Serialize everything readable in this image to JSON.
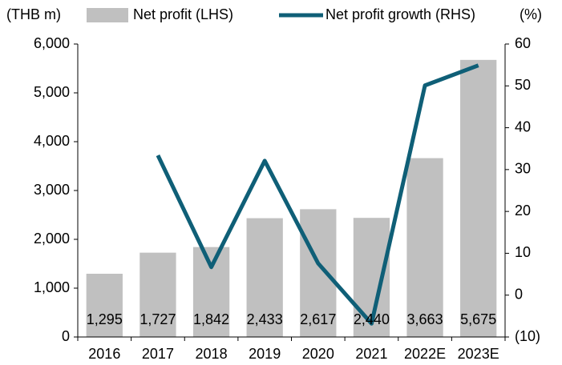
{
  "chart_data": {
    "type": "bar",
    "y_label": "(THB m)",
    "y2_label": "(%)",
    "categories": [
      "2016",
      "2017",
      "2018",
      "2019",
      "2020",
      "2021",
      "2022E",
      "2023E"
    ],
    "series": [
      {
        "name": "Net profit (LHS)",
        "type": "bar",
        "color": "#c0c0c0",
        "values": [
          1295,
          1727,
          1842,
          2433,
          2617,
          2440,
          3663,
          5675
        ],
        "value_labels": [
          "1,295",
          "1,727",
          "1,842",
          "2,433",
          "2,617",
          "2,440",
          "3,663",
          "5,675"
        ]
      },
      {
        "name": "Net profit growth (RHS)",
        "type": "line",
        "axis": "y2",
        "color": "#0f5f77",
        "values": [
          null,
          33.4,
          6.7,
          32.1,
          7.6,
          -6.8,
          50.1,
          54.9
        ]
      }
    ],
    "ylim": [
      0,
      6000
    ],
    "yticks": [
      0,
      {
        "value": 1000,
        "label": "1,000"
      },
      {
        "value": 2000,
        "label": "2,000"
      },
      {
        "value": 3000,
        "label": "3,000"
      },
      {
        "value": 4000,
        "label": "4,000"
      },
      {
        "value": 5000,
        "label": "5,000"
      },
      {
        "value": 6000,
        "label": "6,000"
      }
    ],
    "y2lim": [
      -10,
      60
    ],
    "y2ticks": [
      {
        "value": -10,
        "label": "(10)"
      },
      0,
      10,
      20,
      30,
      40,
      50,
      60
    ],
    "grid": false,
    "legend": "top"
  }
}
